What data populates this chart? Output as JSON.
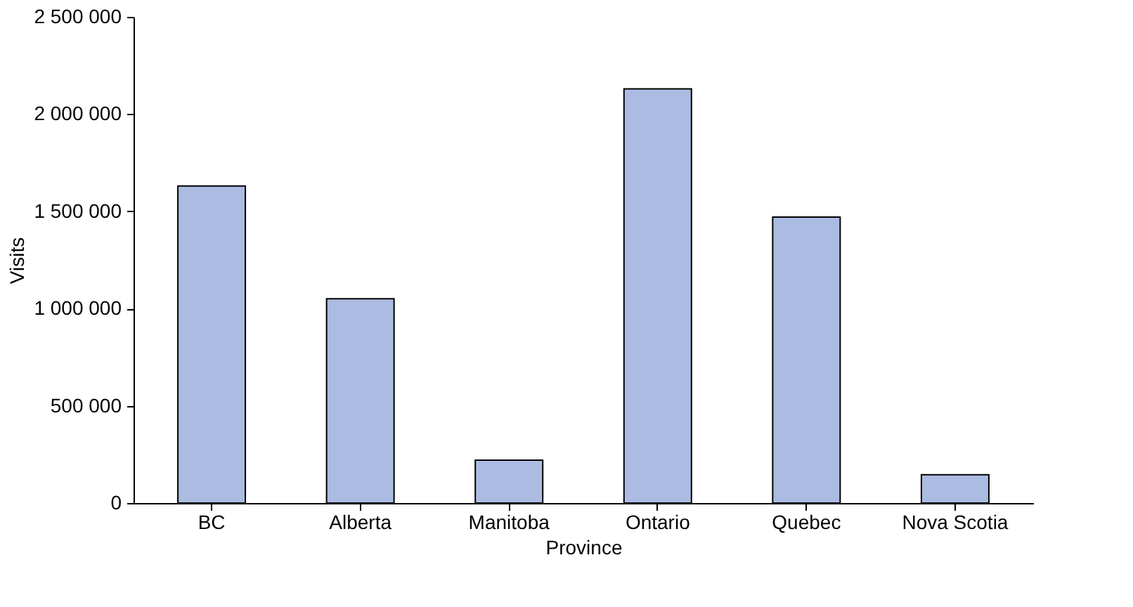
{
  "chart_data": {
    "type": "bar",
    "xlabel": "Province",
    "ylabel": "Visits",
    "categories": [
      "BC",
      "Alberta",
      "Manitoba",
      "Ontario",
      "Quebec",
      "Nova Scotia"
    ],
    "values": [
      1630000,
      1050000,
      220000,
      2130000,
      1470000,
      145000
    ],
    "color": "#abbbe1",
    "ylim": [
      0,
      2500000
    ],
    "yticks": [
      0,
      {
        "value": 500000,
        "label": "500 000"
      },
      {
        "value": 1000000,
        "label": "1 000 000"
      },
      {
        "value": 1500000,
        "label": "1 500 000"
      },
      {
        "value": 2000000,
        "label": "2 000 000"
      },
      {
        "value": 2500000,
        "label": "2 500 000"
      }
    ],
    "grid": false
  }
}
